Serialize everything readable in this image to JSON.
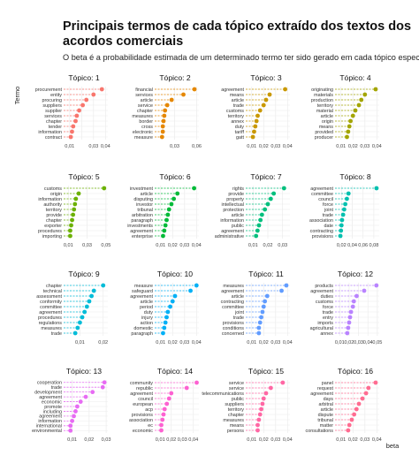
{
  "title": "Principais termos de cada tópico extraído dos textos dos acordos comerciais",
  "subtitle": "O beta é a probabilidade estimada de um determinado termo ter sido gerado em cada tópico específico.",
  "chart_data": {
    "type": "scatter",
    "subtype": "lollipop-facets",
    "ylabel": "Termo",
    "xlabel": "beta",
    "grid": true,
    "facets": [
      {
        "title": "Tópico: 1",
        "color": "#F8766D",
        "terms": [
          "procurement",
          "entity",
          "procuring",
          "suppliers",
          "supplier",
          "services",
          "chapter",
          "tender",
          "information",
          "contract"
        ],
        "values": [
          0.037,
          0.03,
          0.024,
          0.021,
          0.018,
          0.016,
          0.015,
          0.013,
          0.012,
          0.011
        ],
        "ticks": [
          0.01,
          0.02,
          0.03,
          0.04
        ],
        "tick_labels": [
          "0,01",
          "",
          "0,03",
          "0,04"
        ],
        "xlim": [
          0.005,
          0.042
        ]
      },
      {
        "title": "Tópico: 2",
        "color": "#E58700",
        "terms": [
          "financial",
          "services",
          "article",
          "service",
          "chapter",
          "measures",
          "border",
          "cross",
          "electronic",
          "measure"
        ],
        "values": [
          0.057,
          0.042,
          0.026,
          0.02,
          0.017,
          0.016,
          0.015,
          0.014,
          0.014,
          0.013
        ],
        "ticks": [
          0.03,
          0.06
        ],
        "tick_labels": [
          "0,03",
          "0,06"
        ],
        "xlim": [
          0.003,
          0.063
        ]
      },
      {
        "title": "Tópico: 3",
        "color": "#C99800",
        "terms": [
          "agreement",
          "means",
          "article",
          "trade",
          "customs",
          "territory",
          "annex",
          "duty",
          "tariff",
          "gatt"
        ],
        "values": [
          0.038,
          0.025,
          0.022,
          0.02,
          0.017,
          0.015,
          0.014,
          0.013,
          0.012,
          0.011
        ],
        "ticks": [
          0.01,
          0.02,
          0.03,
          0.04
        ],
        "tick_labels": [
          "0,01",
          "0,02",
          "0,03",
          "0,04"
        ],
        "xlim": [
          0.005,
          0.042
        ]
      },
      {
        "title": "Tópico: 4",
        "color": "#A3A500",
        "terms": [
          "originating",
          "materials",
          "production",
          "territory",
          "material",
          "article",
          "origin",
          "means",
          "provided",
          "producer"
        ],
        "values": [
          0.039,
          0.03,
          0.027,
          0.025,
          0.022,
          0.02,
          0.018,
          0.017,
          0.016,
          0.015
        ],
        "ticks": [
          0.01,
          0.02,
          0.03,
          0.04
        ],
        "tick_labels": [
          "0,01",
          "0,02",
          "0,03",
          "0,04"
        ],
        "xlim": [
          0.005,
          0.042
        ]
      },
      {
        "title": "Tópico: 5",
        "color": "#6BB100",
        "terms": [
          "customs",
          "origin",
          "information",
          "authority",
          "territory",
          "provide",
          "chapter",
          "exporter",
          "procedures",
          "importing"
        ],
        "values": [
          0.048,
          0.021,
          0.018,
          0.017,
          0.016,
          0.015,
          0.014,
          0.013,
          0.012,
          0.012
        ],
        "ticks": [
          0.01,
          0.03,
          0.05
        ],
        "tick_labels": [
          "0,01",
          "0,03",
          "0,05"
        ],
        "xlim": [
          0.005,
          0.052
        ]
      },
      {
        "title": "Tópico: 6",
        "color": "#00BA38",
        "terms": [
          "investment",
          "article",
          "disputing",
          "investor",
          "tribunal",
          "arbitration",
          "paragraph",
          "investments",
          "agreement",
          "enterprise"
        ],
        "values": [
          0.038,
          0.024,
          0.021,
          0.019,
          0.017,
          0.016,
          0.015,
          0.014,
          0.013,
          0.012
        ],
        "ticks": [
          0.01,
          0.02,
          0.03,
          0.04
        ],
        "tick_labels": [
          "0,01",
          "0,02",
          "0,03",
          "0,04"
        ],
        "xlim": [
          0.005,
          0.042
        ]
      },
      {
        "title": "Tópico: 7",
        "color": "#00BF7D",
        "terms": [
          "rights",
          "provide",
          "property",
          "intellectual",
          "protection",
          "article",
          "information",
          "public",
          "agreement",
          "administrative"
        ],
        "values": [
          0.031,
          0.024,
          0.022,
          0.02,
          0.018,
          0.016,
          0.015,
          0.014,
          0.013,
          0.012
        ],
        "ticks": [
          0.01,
          0.02,
          0.03
        ],
        "tick_labels": [
          "0,01",
          "0,02",
          "0,03"
        ],
        "xlim": [
          0.005,
          0.035
        ]
      },
      {
        "title": "Tópico: 8",
        "color": "#00C0AF",
        "terms": [
          "agreement",
          "committee",
          "council",
          "force",
          "joint",
          "trade",
          "association",
          "date",
          "contracting",
          "provisions"
        ],
        "values": [
          0.085,
          0.033,
          0.03,
          0.027,
          0.025,
          0.023,
          0.021,
          0.02,
          0.019,
          0.018
        ],
        "ticks": [
          0.02,
          0.04,
          0.06,
          0.08
        ],
        "tick_labels": [
          "0,02",
          "0,04",
          "0,06",
          "0,08"
        ],
        "xlim": [
          0.008,
          0.09
        ]
      },
      {
        "title": "Tópico: 9",
        "color": "#00BCD8",
        "terms": [
          "chapter",
          "technical",
          "assessment",
          "conformity",
          "committee",
          "agreement",
          "procedures",
          "regulations",
          "measures",
          "trade"
        ],
        "values": [
          0.02,
          0.016,
          0.015,
          0.014,
          0.013,
          0.012,
          0.011,
          0.01,
          0.009,
          0.008
        ],
        "ticks": [
          0.01,
          0.02
        ],
        "tick_labels": [
          "0,01",
          "0,02"
        ],
        "xlim": [
          0.003,
          0.022
        ]
      },
      {
        "title": "Tópico: 10",
        "color": "#00B0F6",
        "terms": [
          "measure",
          "safeguard",
          "agreement",
          "article",
          "period",
          "duty",
          "injury",
          "action",
          "domestic",
          "paragraph"
        ],
        "values": [
          0.04,
          0.035,
          0.022,
          0.02,
          0.018,
          0.016,
          0.015,
          0.014,
          0.013,
          0.012
        ],
        "ticks": [
          0.01,
          0.02,
          0.03,
          0.04
        ],
        "tick_labels": [
          "0,01",
          "0,02",
          "0,03",
          "0,04"
        ],
        "xlim": [
          0.005,
          0.042
        ]
      },
      {
        "title": "Tópico: 11",
        "color": "#619CFF",
        "terms": [
          "measures",
          "agreement",
          "article",
          "contracting",
          "committee",
          "joint",
          "trade",
          "provisions",
          "conditions",
          "concerned"
        ],
        "values": [
          0.039,
          0.035,
          0.023,
          0.021,
          0.02,
          0.019,
          0.018,
          0.017,
          0.016,
          0.016
        ],
        "ticks": [
          0.01,
          0.02,
          0.03,
          0.04
        ],
        "tick_labels": [
          "0,01",
          "0,02",
          "0,03",
          "0,04"
        ],
        "xlim": [
          0.005,
          0.042
        ]
      },
      {
        "title": "Tópico: 12",
        "color": "#B983FF",
        "terms": [
          "products",
          "agreement",
          "duties",
          "customs",
          "force",
          "trade",
          "entry",
          "imports",
          "agricultural",
          "annex"
        ],
        "values": [
          0.049,
          0.036,
          0.028,
          0.025,
          0.024,
          0.022,
          0.021,
          0.02,
          0.019,
          0.018
        ],
        "ticks": [
          0.01,
          0.02,
          0.03,
          0.04,
          0.05
        ],
        "tick_labels": [
          "0,01",
          "0,02",
          "0,03",
          "0,04",
          "0,05"
        ],
        "xlim": [
          0.005,
          0.052
        ]
      },
      {
        "title": "Tópico: 13",
        "color": "#E76BF3",
        "terms": [
          "cooperation",
          "trade",
          "development",
          "agreement",
          "economic",
          "promote",
          "including",
          "agreement",
          "information",
          "international",
          "environmental"
        ],
        "values": [
          0.029,
          0.028,
          0.022,
          0.018,
          0.015,
          0.013,
          0.012,
          0.011,
          0.01,
          0.009,
          0.009
        ],
        "ticks": [
          0.01,
          0.02,
          0.03
        ],
        "tick_labels": [
          "0,01",
          "0,02",
          "0,03"
        ],
        "xlim": [
          0.005,
          0.031
        ]
      },
      {
        "title": "Tópico: 14",
        "color": "#FD61D1",
        "terms": [
          "community",
          "republic",
          "agreement",
          "council",
          "european",
          "acp",
          "provisions",
          "association",
          "ec",
          "economic"
        ],
        "values": [
          0.043,
          0.034,
          0.02,
          0.018,
          0.016,
          0.014,
          0.013,
          0.012,
          0.011,
          0.011
        ],
        "ticks": [
          0.01,
          0.02,
          0.03,
          0.04
        ],
        "tick_labels": [
          "0,01",
          "0,02",
          "0,03",
          "0,04"
        ],
        "xlim": [
          0.005,
          0.045
        ]
      },
      {
        "title": "Tópico: 15",
        "color": "#FF67A4",
        "terms": [
          "service",
          "service",
          "telecommunications",
          "public",
          "suppliers",
          "territory",
          "chapter",
          "measures",
          "means",
          "persons"
        ],
        "values": [
          0.036,
          0.026,
          0.022,
          0.02,
          0.019,
          0.018,
          0.017,
          0.016,
          0.015,
          0.015
        ],
        "ticks": [
          0.01,
          0.02,
          0.03,
          0.04
        ],
        "tick_labels": [
          "0,01",
          "0,02",
          "0,03",
          "0,04"
        ],
        "xlim": [
          0.005,
          0.042
        ]
      },
      {
        "title": "Tópico: 16",
        "color": "#FF6C91",
        "terms": [
          "panel",
          "request",
          "agreement",
          "days",
          "arbitral",
          "article",
          "dispute",
          "tribunal",
          "matter",
          "consultations"
        ],
        "values": [
          0.039,
          0.033,
          0.031,
          0.028,
          0.025,
          0.023,
          0.021,
          0.019,
          0.017,
          0.016
        ],
        "ticks": [
          0.01,
          0.02,
          0.03,
          0.04
        ],
        "tick_labels": [
          "0,01",
          "0,02",
          "0,03",
          "0,04"
        ],
        "xlim": [
          0.005,
          0.042
        ]
      }
    ]
  }
}
